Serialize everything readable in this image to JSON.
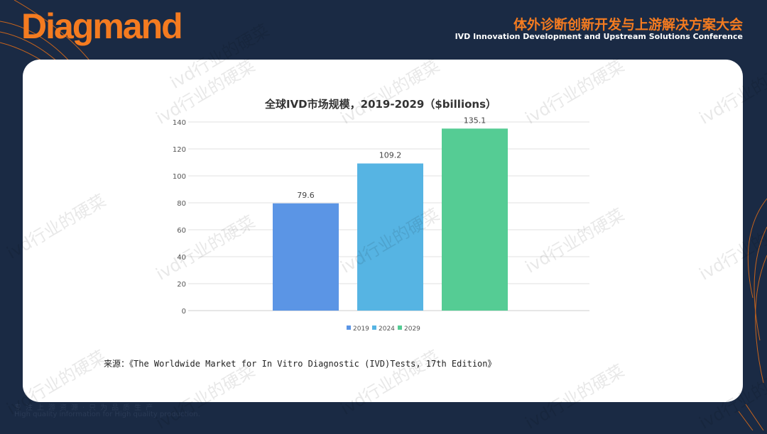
{
  "header": {
    "logo": "Diagmand",
    "title_cn": "体外诊断创新开发与上游解决方案大会",
    "title_en": "IVD Innovation Development and Upstream Solutions Conference"
  },
  "footer": {
    "slogan_cn": "专注上游资源·只为品质生产",
    "slogan_en": "High quality information for High quality production."
  },
  "watermark": "ivd行业的硬菜",
  "source": "来源：《The Worldwide Market for In Vitro Diagnostic (IVD)Tests, 17th Edition》",
  "colors": {
    "bg": "#1a2a44",
    "accent": "#f47b20"
  },
  "chart_data": {
    "type": "bar",
    "title": "全球IVD市场规模，2019-2029（$billions）",
    "categories": [
      "2019",
      "2024",
      "2029"
    ],
    "values": [
      79.6,
      109.2,
      135.1
    ],
    "labels": [
      "79.6",
      "109.2",
      "135.1"
    ],
    "colors": [
      "#5b95e5",
      "#56b4e3",
      "#55cc94"
    ],
    "ylim": [
      0,
      140
    ],
    "yticks": [
      "0",
      "20",
      "40",
      "60",
      "80",
      "100",
      "120",
      "140"
    ],
    "legend": "bottom",
    "grid": true
  }
}
